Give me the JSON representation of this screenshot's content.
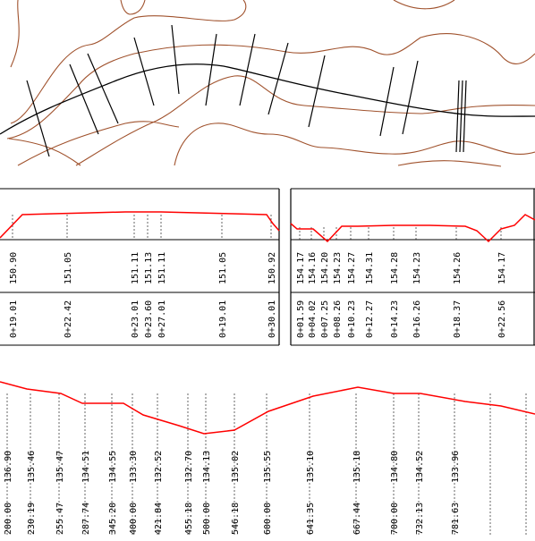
{
  "colors": {
    "background": "#ffffff",
    "contour": "#a0522d",
    "alignment": "#000000",
    "profile": "#ff0000",
    "guides": "#000000"
  },
  "cross_section_left": {
    "elevations": [
      "150.90",
      "151.05",
      "151.11",
      "151.13",
      "151.11",
      "151.05",
      "150.92"
    ],
    "stations": [
      "0+19.01",
      "0+22.42",
      "0+23.01",
      "0+23.60",
      "0+27.01",
      "0+19.01",
      "0+30.01"
    ]
  },
  "cross_section_right": {
    "elevations": [
      "154.17",
      "154.16",
      "154.20",
      "154.23",
      "154.27",
      "154.31",
      "154.28",
      "154.23",
      "154.26",
      "154.17"
    ],
    "stations": [
      "0+01.59",
      "0+04.02",
      "0+07.25",
      "0+08.26",
      "0+10.23",
      "0+12.27",
      "0+14.23",
      "0+16.26",
      "0+18.37",
      "0+22.56"
    ]
  },
  "long_profile": {
    "stations": [
      "200.00",
      "230.19",
      "255.47",
      "287.74",
      "345.20",
      "400.00",
      "421.84",
      "455.18",
      "500.00",
      "546.18",
      "600.00",
      "641.35",
      "667.44",
      "700.00",
      "732.13",
      "781.63"
    ],
    "elevations": [
      "136.90",
      "135.46",
      "135.47",
      "134.51",
      "134.55",
      "133.30",
      "132.52",
      "132.70",
      "134.13",
      "135.02",
      "135.55",
      "135.10",
      "135.18",
      "134.80",
      "134.52",
      "133.96"
    ]
  }
}
